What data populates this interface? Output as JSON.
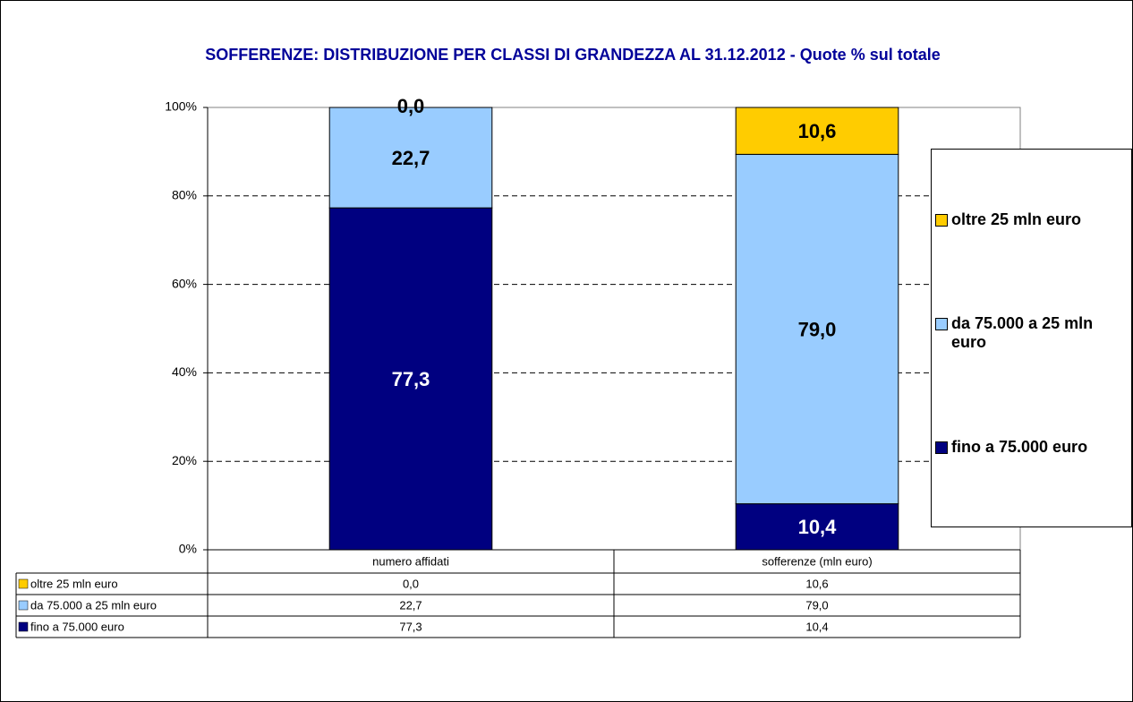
{
  "chart_data": {
    "type": "stacked_bar",
    "title": "SOFFERENZE: DISTRIBUZIONE PER CLASSI DI GRANDEZZA AL 31.12.2012 - Quote % sul totale",
    "categories": [
      "numero affidati",
      "sofferenze (mln euro)"
    ],
    "series": [
      {
        "name": "fino a 75.000 euro",
        "color": "#000080",
        "values": [
          77.3,
          10.4
        ],
        "value_labels": [
          "77,3",
          "10,4"
        ]
      },
      {
        "name": "da 75.000 a 25 mln euro",
        "color": "#99ccff",
        "values": [
          22.7,
          79.0
        ],
        "value_labels": [
          "22,7",
          "79,0"
        ]
      },
      {
        "name": "oltre 25 mln euro",
        "color": "#ffcc00",
        "values": [
          0.0,
          10.6
        ],
        "value_labels": [
          "0,0",
          "10,6"
        ]
      }
    ],
    "ylim": [
      0,
      100
    ],
    "yticks": [
      {
        "value": 0,
        "label": "0%"
      },
      {
        "value": 20,
        "label": "20%"
      },
      {
        "value": 40,
        "label": "40%"
      },
      {
        "value": 60,
        "label": "60%"
      },
      {
        "value": 80,
        "label": "80%"
      },
      {
        "value": 100,
        "label": "100%"
      }
    ],
    "grid": true,
    "legend": "right",
    "data_table": true
  }
}
